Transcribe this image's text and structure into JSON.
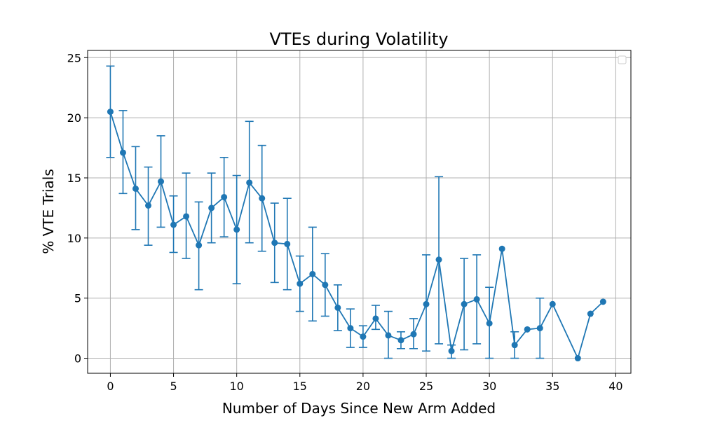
{
  "chart_data": {
    "type": "line",
    "title": "VTEs during Volatility",
    "xlabel": "Number of Days Since New Arm Added",
    "ylabel": "% VTE Trials",
    "xlim": [
      -1.8,
      41.2
    ],
    "ylim": [
      -1.25,
      25.6
    ],
    "xticks": [
      0,
      5,
      10,
      15,
      20,
      25,
      30,
      35,
      40
    ],
    "yticks": [
      0,
      5,
      10,
      15,
      20,
      25
    ],
    "grid": true,
    "legend": "top-right (empty)",
    "colors": {
      "series": "#1f77b4",
      "grid": "#b0b0b0",
      "axis": "#000000"
    },
    "series": [
      {
        "marker": "circle",
        "errorbar_caps": true,
        "points": [
          {
            "x": 0,
            "y": 20.5,
            "err_low": 16.7,
            "err_high": 24.3
          },
          {
            "x": 1,
            "y": 17.1,
            "err_low": 13.7,
            "err_high": 20.6
          },
          {
            "x": 2,
            "y": 14.1,
            "err_low": 10.7,
            "err_high": 17.6
          },
          {
            "x": 3,
            "y": 12.7,
            "err_low": 9.4,
            "err_high": 15.9
          },
          {
            "x": 4,
            "y": 14.7,
            "err_low": 10.9,
            "err_high": 18.5
          },
          {
            "x": 5,
            "y": 11.1,
            "err_low": 8.8,
            "err_high": 13.5
          },
          {
            "x": 6,
            "y": 11.8,
            "err_low": 8.3,
            "err_high": 15.4
          },
          {
            "x": 7,
            "y": 9.4,
            "err_low": 5.7,
            "err_high": 13.0
          },
          {
            "x": 8,
            "y": 12.5,
            "err_low": 9.6,
            "err_high": 15.4
          },
          {
            "x": 9,
            "y": 13.4,
            "err_low": 10.1,
            "err_high": 16.7
          },
          {
            "x": 10,
            "y": 10.7,
            "err_low": 6.2,
            "err_high": 15.2
          },
          {
            "x": 11,
            "y": 14.6,
            "err_low": 9.6,
            "err_high": 19.7
          },
          {
            "x": 12,
            "y": 13.3,
            "err_low": 8.9,
            "err_high": 17.7
          },
          {
            "x": 13,
            "y": 9.6,
            "err_low": 6.3,
            "err_high": 12.9
          },
          {
            "x": 14,
            "y": 9.5,
            "err_low": 5.7,
            "err_high": 13.3
          },
          {
            "x": 15,
            "y": 6.2,
            "err_low": 3.9,
            "err_high": 8.5
          },
          {
            "x": 16,
            "y": 7.0,
            "err_low": 3.1,
            "err_high": 10.9
          },
          {
            "x": 17,
            "y": 6.1,
            "err_low": 3.5,
            "err_high": 8.7
          },
          {
            "x": 18,
            "y": 4.2,
            "err_low": 2.3,
            "err_high": 6.1
          },
          {
            "x": 19,
            "y": 2.5,
            "err_low": 0.9,
            "err_high": 4.1
          },
          {
            "x": 20,
            "y": 1.8,
            "err_low": 0.9,
            "err_high": 2.7
          },
          {
            "x": 21,
            "y": 3.3,
            "err_low": 2.4,
            "err_high": 4.4
          },
          {
            "x": 22,
            "y": 1.9,
            "err_low": 0.0,
            "err_high": 3.9
          },
          {
            "x": 23,
            "y": 1.5,
            "err_low": 0.8,
            "err_high": 2.2
          },
          {
            "x": 24,
            "y": 2.0,
            "err_low": 0.8,
            "err_high": 3.3
          },
          {
            "x": 25,
            "y": 4.5,
            "err_low": 0.6,
            "err_high": 8.6
          },
          {
            "x": 26,
            "y": 8.2,
            "err_low": 1.2,
            "err_high": 15.1
          },
          {
            "x": 27,
            "y": 0.6,
            "err_low": 0.0,
            "err_high": 1.1
          },
          {
            "x": 28,
            "y": 4.5,
            "err_low": 0.7,
            "err_high": 8.3
          },
          {
            "x": 29,
            "y": 4.9,
            "err_low": 1.2,
            "err_high": 8.6
          },
          {
            "x": 30,
            "y": 2.9,
            "err_low": 0.0,
            "err_high": 5.9
          },
          {
            "x": 31,
            "y": 9.1
          },
          {
            "x": 32,
            "y": 1.1,
            "err_low": 0.0,
            "err_high": 2.2
          },
          {
            "x": 33,
            "y": 2.4
          },
          {
            "x": 34,
            "y": 2.5,
            "err_low": 0.0,
            "err_high": 5.0
          },
          {
            "x": 35,
            "y": 4.5
          },
          {
            "x": 37,
            "y": 0.0
          },
          {
            "x": 38,
            "y": 3.7
          },
          {
            "x": 39,
            "y": 4.7
          }
        ]
      }
    ]
  }
}
